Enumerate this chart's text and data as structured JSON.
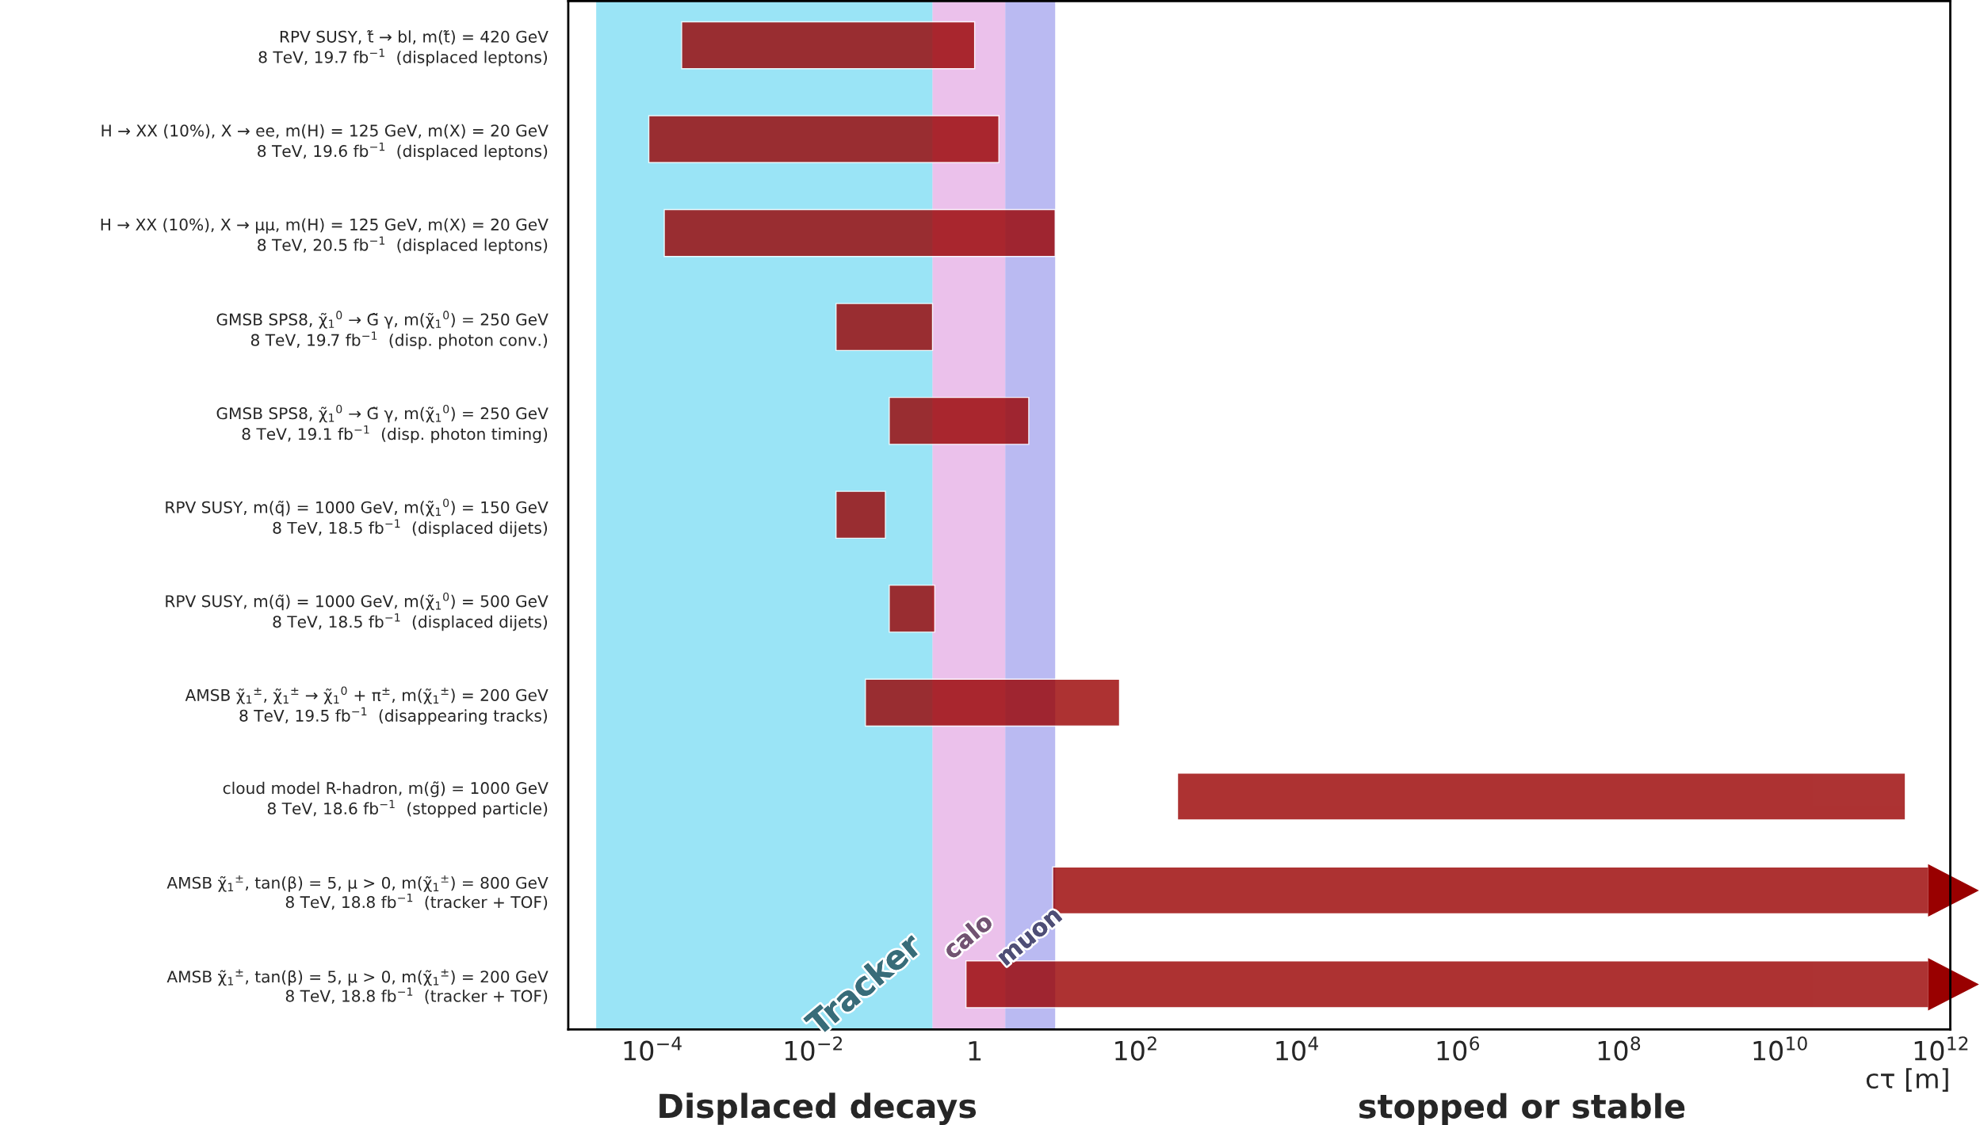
{
  "chart_data": {
    "type": "bar",
    "orientation": "horizontal",
    "categories": [
      "RPV SUSY, t̃ → bl, m(t̃) = 420 GeV\n8 TeV, 19.7 fb$^{−1}$  (displaced leptons)",
      "H → XX (10%), X → ee, m(H) = 125 GeV, m(X) = 20 GeV\n8 TeV, 19.6 fb$^{−1}$  (displaced leptons)",
      "H → XX (10%), X → μμ, m(H) = 125 GeV, m(X) = 20 GeV\n8 TeV, 20.5 fb$^{−1}$  (displaced leptons)",
      "GMSB SPS8, χ̃$_{1}$$^{0}$ → G̃ γ, m(χ̃$_{1}$$^{0}$) = 250 GeV\n8 TeV, 19.7 fb$^{−1}$  (disp. photon conv.)",
      "GMSB SPS8, χ̃$_{1}$$^{0}$ → G̃ γ, m(χ̃$_{1}$$^{0}$) = 250 GeV\n8 TeV, 19.1 fb$^{−1}$  (disp. photon timing)",
      "RPV SUSY, m(q̃) = 1000 GeV, m(χ̃$_{1}$$^{0}$) = 150 GeV\n8 TeV, 18.5 fb$^{−1}$  (displaced dijets)",
      "RPV SUSY, m(q̃) = 1000 GeV, m(χ̃$_{1}$$^{0}$) = 500 GeV\n8 TeV, 18.5 fb$^{−1}$  (displaced dijets)",
      "AMSB χ̃$_{1}$$^{±}$, χ̃$_{1}$$^{±}$ → χ̃$_{1}$$^{0}$ + π$^{±}$, m(χ̃$_{1}$$^{±}$) = 200 GeV\n8 TeV, 19.5 fb$^{−1}$  (disappearing tracks)",
      "cloud model R-hadron, m(g̃) = 1000 GeV\n8 TeV, 18.6 fb$^{−1}$  (stopped particle)",
      "AMSB χ̃$_{1}$$^{±}$, tan(β) = 5, μ > 0, m(χ̃$_{1}$$^{±}$) = 800 GeV\n8 TeV, 18.8 fb$^{−1}$  (tracker + TOF)",
      "AMSB χ̃$_{1}$$^{±}$, tan(β) = 5, μ > 0, m(χ̃$_{1}$$^{±}$) = 200 GeV\n8 TeV, 18.8 fb$^{−1}$  (tracker + TOF)"
    ],
    "base": [
      0.00023,
      9e-05,
      0.00014,
      0.019,
      0.087,
      0.019,
      0.087,
      0.044,
      330,
      9.3,
      0.78
    ],
    "values": [
      0.99977,
      1.99991,
      9.99986,
      0.281,
      4.613,
      0.059,
      0.233,
      62.956,
      359999999670,
      699999999990.7,
      699999999999.22
    ],
    "color": "#990000",
    "xlabel": "cτ [m]",
    "log": "x",
    "xlim": [
      9e-06,
      1300000000000.0
    ],
    "xticks": [
      {
        "value": 0.0001,
        "label": "10$^{−4}$"
      },
      {
        "value": 0.01,
        "label": "10$^{−2}$"
      },
      1,
      {
        "value": 100,
        "label": "10$^{2}$"
      },
      {
        "value": 10000,
        "label": "10$^{4}$"
      },
      {
        "value": 1000000,
        "label": "10$^{6}$"
      },
      {
        "value": 100000000,
        "label": "10$^{8}$"
      },
      {
        "value": 10000000000,
        "label": "10$^{10}$"
      },
      {
        "value": 1000000000000,
        "label": "10$^{12}$"
      }
    ],
    "bands": [
      {
        "axis": "x",
        "from": 2e-05,
        "to": 0.3,
        "label": "Tracker",
        "color": "#6fd8f2"
      },
      {
        "axis": "x",
        "from": 0.3,
        "to": 2.4,
        "label": "calo",
        "color": "#e3a6e3"
      },
      {
        "axis": "x",
        "from": 2.4,
        "to": 10,
        "label": "muon",
        "color": "#9c9cec"
      }
    ],
    "annotations": [
      "Displaced decays",
      "stopped or stable"
    ],
    "grid": false,
    "legend": false
  }
}
